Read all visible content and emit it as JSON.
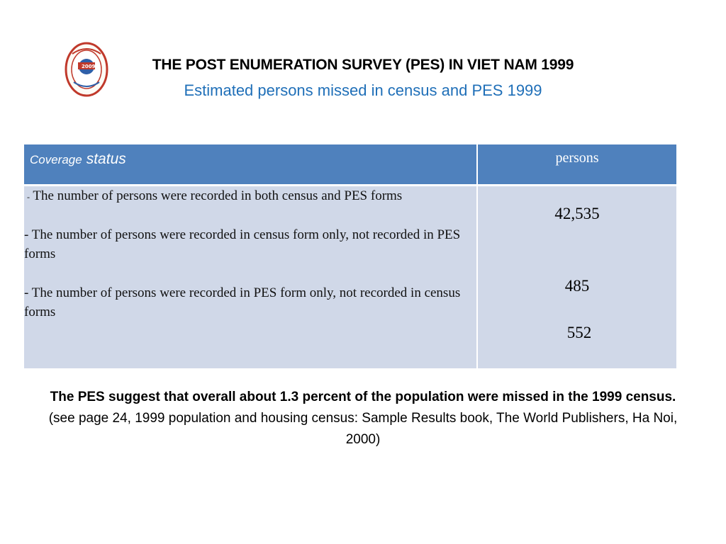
{
  "header": {
    "title": "THE POST ENUMERATION SURVEY (PES) IN VIET NAM 1999",
    "subtitle": "Estimated persons missed in census and PES 1999",
    "logo_icon": "census-1999-seal-logo",
    "logo_text": "TỔNG ĐIỀU TRA DÂN SỐ VÀ NHÀ Ở 1.4 2009 VIỆT NAM"
  },
  "table": {
    "header": {
      "coverage": "Coverage",
      "status": "status",
      "persons": "persons"
    },
    "rows": [
      {
        "prefix": "-",
        "label": "The number of persons were recorded in both census and PES forms",
        "value": "42,535"
      },
      {
        "label": "- The number of persons were recorded in census form only, not recorded in PES forms",
        "value": "485"
      },
      {
        "label": " - The number of persons were recorded in PES form only, not recorded in census forms",
        "value": "552"
      }
    ],
    "colors": {
      "header_bg": "#4f81bd",
      "body_bg": "#d0d8e8"
    }
  },
  "note": {
    "summary": "The PES suggest that overall about 1.3 percent of the population were missed in the 1999 census.",
    "reference": " (see page 24, 1999 population and housing census: Sample Results book, The World Publishers, Ha Noi, 2000)"
  },
  "colors": {
    "subtitle": "#1f6fb8"
  }
}
